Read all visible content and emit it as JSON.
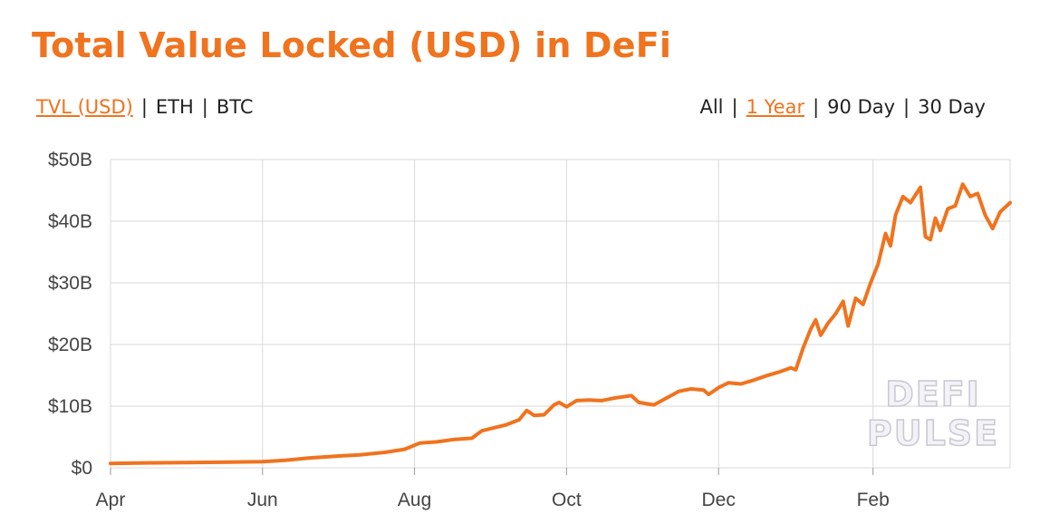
{
  "header": {
    "title": "Total Value Locked (USD) in DeFi"
  },
  "metric_tabs": [
    {
      "label": "TVL (USD)",
      "active": true
    },
    {
      "label": "ETH",
      "active": false
    },
    {
      "label": "BTC",
      "active": false
    }
  ],
  "range_tabs": [
    {
      "label": "All",
      "active": false
    },
    {
      "label": "1 Year",
      "active": true
    },
    {
      "label": "90 Day",
      "active": false
    },
    {
      "label": "30 Day",
      "active": false
    }
  ],
  "watermark": {
    "line1": "DEFI",
    "line2": "PULSE"
  },
  "colors": {
    "accent": "#f0731e",
    "grid": "#d9d9d9",
    "text": "#444444"
  },
  "chart_data": {
    "type": "line",
    "title": "Total Value Locked (USD) in DeFi",
    "xlabel": "",
    "ylabel": "",
    "x_ticks": [
      {
        "label": "Apr",
        "date": "2020-04-01"
      },
      {
        "label": "Jun",
        "date": "2020-06-01"
      },
      {
        "label": "Aug",
        "date": "2020-08-01"
      },
      {
        "label": "Oct",
        "date": "2020-10-01"
      },
      {
        "label": "Dec",
        "date": "2020-12-01"
      },
      {
        "label": "Feb",
        "date": "2021-02-01"
      }
    ],
    "y_ticks": [
      "$0",
      "$10B",
      "$20B",
      "$30B",
      "$40B",
      "$50B"
    ],
    "ylim": [
      0,
      50
    ],
    "xlim": [
      "2020-04-01",
      "2021-03-28"
    ],
    "unit": "USD billions",
    "grid": true,
    "series": [
      {
        "color": "#f0731e",
        "points": [
          [
            "2020-04-01",
            0.7
          ],
          [
            "2020-04-15",
            0.8
          ],
          [
            "2020-05-01",
            0.85
          ],
          [
            "2020-05-15",
            0.9
          ],
          [
            "2020-06-01",
            1.0
          ],
          [
            "2020-06-10",
            1.2
          ],
          [
            "2020-06-20",
            1.6
          ],
          [
            "2020-07-01",
            1.9
          ],
          [
            "2020-07-10",
            2.1
          ],
          [
            "2020-07-20",
            2.5
          ],
          [
            "2020-07-28",
            3.0
          ],
          [
            "2020-08-03",
            4.0
          ],
          [
            "2020-08-10",
            4.2
          ],
          [
            "2020-08-17",
            4.6
          ],
          [
            "2020-08-24",
            4.8
          ],
          [
            "2020-08-28",
            6.0
          ],
          [
            "2020-09-02",
            6.5
          ],
          [
            "2020-09-07",
            7.0
          ],
          [
            "2020-09-12",
            7.8
          ],
          [
            "2020-09-15",
            9.3
          ],
          [
            "2020-09-18",
            8.5
          ],
          [
            "2020-09-22",
            8.6
          ],
          [
            "2020-09-26",
            10.2
          ],
          [
            "2020-09-28",
            10.6
          ],
          [
            "2020-10-01",
            9.9
          ],
          [
            "2020-10-05",
            10.9
          ],
          [
            "2020-10-10",
            11.0
          ],
          [
            "2020-10-15",
            10.9
          ],
          [
            "2020-10-20",
            11.3
          ],
          [
            "2020-10-27",
            11.7
          ],
          [
            "2020-10-30",
            10.6
          ],
          [
            "2020-11-05",
            10.2
          ],
          [
            "2020-11-10",
            11.3
          ],
          [
            "2020-11-15",
            12.4
          ],
          [
            "2020-11-20",
            12.8
          ],
          [
            "2020-11-25",
            12.6
          ],
          [
            "2020-11-27",
            11.9
          ],
          [
            "2020-12-01",
            13.0
          ],
          [
            "2020-12-05",
            13.8
          ],
          [
            "2020-12-10",
            13.6
          ],
          [
            "2020-12-15",
            14.2
          ],
          [
            "2020-12-20",
            14.9
          ],
          [
            "2020-12-25",
            15.5
          ],
          [
            "2020-12-30",
            16.2
          ],
          [
            "2021-01-01",
            15.9
          ],
          [
            "2021-01-04",
            19.5
          ],
          [
            "2021-01-07",
            22.5
          ],
          [
            "2021-01-09",
            24.0
          ],
          [
            "2021-01-11",
            21.5
          ],
          [
            "2021-01-14",
            23.5
          ],
          [
            "2021-01-17",
            25.0
          ],
          [
            "2021-01-20",
            27.0
          ],
          [
            "2021-01-22",
            23.0
          ],
          [
            "2021-01-25",
            27.5
          ],
          [
            "2021-01-28",
            26.5
          ],
          [
            "2021-01-31",
            30.0
          ],
          [
            "2021-02-03",
            33.0
          ],
          [
            "2021-02-06",
            38.0
          ],
          [
            "2021-02-08",
            36.0
          ],
          [
            "2021-02-10",
            41.0
          ],
          [
            "2021-02-13",
            44.0
          ],
          [
            "2021-02-16",
            43.0
          ],
          [
            "2021-02-20",
            45.5
          ],
          [
            "2021-02-22",
            37.5
          ],
          [
            "2021-02-24",
            37.0
          ],
          [
            "2021-02-26",
            40.5
          ],
          [
            "2021-02-28",
            38.5
          ],
          [
            "2021-03-03",
            42.0
          ],
          [
            "2021-03-06",
            42.5
          ],
          [
            "2021-03-09",
            46.0
          ],
          [
            "2021-03-12",
            44.0
          ],
          [
            "2021-03-15",
            44.5
          ],
          [
            "2021-03-18",
            41.0
          ],
          [
            "2021-03-21",
            38.8
          ],
          [
            "2021-03-24",
            41.5
          ],
          [
            "2021-03-28",
            43.0
          ]
        ]
      }
    ]
  }
}
